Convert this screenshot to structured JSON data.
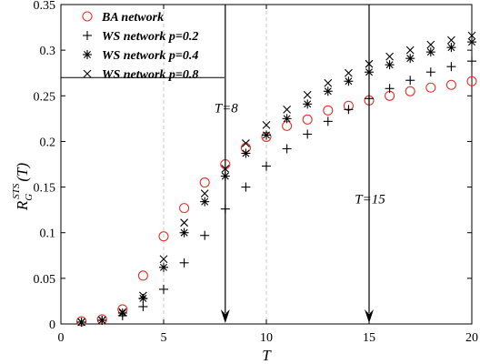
{
  "chart_data": {
    "type": "scatter",
    "xlabel": "T",
    "ylabel_main": "R",
    "ylabel_sub": "G",
    "ylabel_sup": "STS",
    "ylabel_arg": "(T)",
    "xlim": [
      0,
      20
    ],
    "ylim": [
      0,
      0.35
    ],
    "xticks": [
      0,
      5,
      10,
      15,
      20
    ],
    "yticks": [
      0,
      0.05,
      0.1,
      0.15,
      0.2,
      0.25,
      0.3,
      0.35
    ],
    "grid": false,
    "legend_position": "top-left",
    "x": [
      1,
      2,
      3,
      4,
      5,
      6,
      7,
      8,
      9,
      10,
      11,
      12,
      13,
      14,
      15,
      16,
      17,
      18,
      19,
      20
    ],
    "series": [
      {
        "name": "BA network",
        "marker": "circle",
        "color": "#e8322b",
        "values": [
          0.003,
          0.005,
          0.016,
          0.053,
          0.096,
          0.127,
          0.155,
          0.175,
          0.193,
          0.205,
          0.217,
          0.224,
          0.234,
          0.239,
          0.245,
          0.25,
          0.255,
          0.259,
          0.262,
          0.266
        ]
      },
      {
        "name": "WS network p=0.2",
        "marker": "plus",
        "color": "#000000",
        "values": [
          0.002,
          0.004,
          0.009,
          0.019,
          0.038,
          0.067,
          0.097,
          0.126,
          0.15,
          0.173,
          0.192,
          0.208,
          0.222,
          0.235,
          0.247,
          0.258,
          0.267,
          0.276,
          0.282,
          0.288
        ]
      },
      {
        "name": "WS network p=0.4",
        "marker": "asterisk",
        "color": "#000000",
        "values": [
          0.002,
          0.004,
          0.012,
          0.028,
          0.062,
          0.1,
          0.134,
          0.162,
          0.187,
          0.207,
          0.225,
          0.241,
          0.255,
          0.266,
          0.276,
          0.284,
          0.291,
          0.298,
          0.303,
          0.309
        ]
      },
      {
        "name": "WS network p=0.8",
        "marker": "cross",
        "color": "#000000",
        "values": [
          0.002,
          0.004,
          0.013,
          0.031,
          0.071,
          0.111,
          0.143,
          0.17,
          0.198,
          0.218,
          0.235,
          0.251,
          0.264,
          0.275,
          0.285,
          0.293,
          0.3,
          0.306,
          0.311,
          0.316
        ]
      }
    ],
    "annotations": [
      {
        "text": "T=8",
        "x": 8,
        "y_text": 0.232
      },
      {
        "text": "T=15",
        "x": 15,
        "y_text": 0.132
      }
    ],
    "arrows": [
      {
        "x": 8,
        "y_top": 0.35,
        "y_bottom": 0
      },
      {
        "x": 15,
        "y_top": 0.35,
        "y_bottom": 0
      }
    ],
    "dashed_vlines": [
      5,
      10
    ],
    "legend_box_bottom": 0.27
  }
}
